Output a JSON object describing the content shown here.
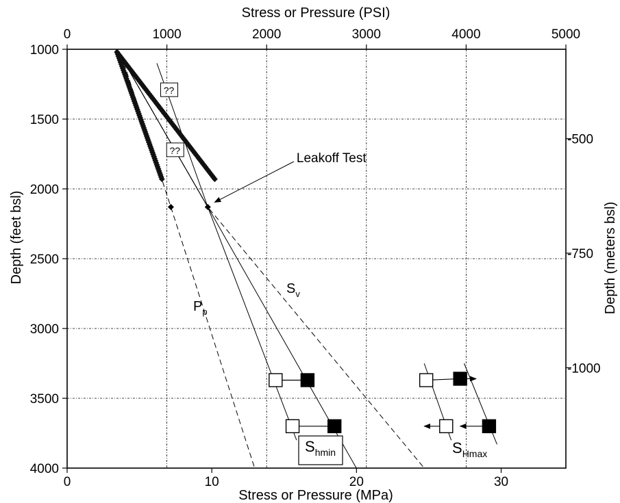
{
  "chart_data": {
    "type": "scatter",
    "title": "",
    "x_top_label": "Stress or Pressure (PSI)",
    "x_bottom_label": "Stress or Pressure (MPa)",
    "y_left_label": "Depth (feet bsl)",
    "y_right_label": "Depth (meters bsl)",
    "x_psi_range": [
      0,
      5000
    ],
    "x_psi_ticks": [
      0,
      1000,
      2000,
      3000,
      4000,
      5000
    ],
    "x_mpa_ticks": [
      0,
      10,
      20,
      30
    ],
    "y_feet_range": [
      1000,
      4000
    ],
    "y_feet_ticks": [
      1000,
      1500,
      2000,
      2500,
      3000,
      3500,
      4000
    ],
    "y_meters_ticks": [
      500,
      750,
      1000
    ],
    "grid": true,
    "annotations": {
      "leakoff_label": "Leakoff Test",
      "question_mark_label": "??",
      "pp_main": "P",
      "pp_sub": "p",
      "sv_main": "S",
      "sv_sub": "v",
      "shmin_main": "S",
      "shmin_sub": "hmin",
      "shmax_main": "S",
      "shmax_sub": "Hmax"
    },
    "question_marks": [
      {
        "psi": 1020,
        "depth": 1290
      },
      {
        "psi": 1080,
        "depth": 1720
      }
    ],
    "leakoff_point": {
      "psi": 1410,
      "depth": 2130
    },
    "leakoff_label_pos": {
      "psi": 2300,
      "depth": 1780
    },
    "pp_point": {
      "psi": 1040,
      "depth": 2130
    },
    "mud_weight_curves": [
      {
        "name": "pore pressure trend",
        "start": {
          "psi": 500,
          "depth": 1020
        },
        "end": {
          "psi": 950,
          "depth": 1930
        }
      },
      {
        "name": "upper trend",
        "start": {
          "psi": 500,
          "depth": 1020
        },
        "end": {
          "psi": 1480,
          "depth": 1930
        }
      }
    ],
    "series": [
      {
        "name": "P_p",
        "style": "dashed",
        "points": [
          {
            "psi": 570,
            "depth": 1100
          },
          {
            "psi": 1040,
            "depth": 2130
          },
          {
            "psi": 1880,
            "depth": 4000
          }
        ]
      },
      {
        "name": "S_v",
        "style": "dashed",
        "points": [
          {
            "psi": 530,
            "depth": 1040
          },
          {
            "psi": 1410,
            "depth": 2130
          },
          {
            "psi": 3580,
            "depth": 4000
          }
        ]
      },
      {
        "name": "S_hmin lower",
        "style": "solid",
        "points": [
          {
            "psi": 530,
            "depth": 1040
          },
          {
            "psi": 1410,
            "depth": 2130
          },
          {
            "psi": 2300,
            "depth": 3800
          }
        ]
      },
      {
        "name": "S_hmin upper",
        "style": "solid",
        "points": [
          {
            "psi": 530,
            "depth": 1040
          },
          {
            "psi": 1410,
            "depth": 2130
          },
          {
            "psi": 2900,
            "depth": 4000
          }
        ]
      },
      {
        "name": "top line",
        "style": "solid",
        "points": [
          {
            "psi": 900,
            "depth": 1100
          },
          {
            "psi": 1410,
            "depth": 2130
          }
        ]
      },
      {
        "name": "S_Hmax lower",
        "style": "solid",
        "points": [
          {
            "psi": 3580,
            "depth": 3250
          },
          {
            "psi": 3850,
            "depth": 3800
          }
        ]
      },
      {
        "name": "S_Hmax upper",
        "style": "solid",
        "points": [
          {
            "psi": 3980,
            "depth": 3250
          },
          {
            "psi": 4310,
            "depth": 3830
          }
        ]
      }
    ],
    "markers": [
      {
        "psi": 2090,
        "depth": 3370,
        "fill": "open"
      },
      {
        "psi": 2410,
        "depth": 3370,
        "fill": "filled"
      },
      {
        "psi": 2260,
        "depth": 3700,
        "fill": "open"
      },
      {
        "psi": 2680,
        "depth": 3700,
        "fill": "filled"
      },
      {
        "psi": 3600,
        "depth": 3370,
        "fill": "open"
      },
      {
        "psi": 3940,
        "depth": 3360,
        "fill": "filled"
      },
      {
        "psi": 3800,
        "depth": 3700,
        "fill": "open"
      },
      {
        "psi": 4230,
        "depth": 3700,
        "fill": "filled"
      }
    ],
    "connectors": [
      {
        "from": {
          "psi": 2090,
          "depth": 3370
        },
        "to": {
          "psi": 2410,
          "depth": 3370
        },
        "arrow": false
      },
      {
        "from": {
          "psi": 2260,
          "depth": 3700
        },
        "to": {
          "psi": 2680,
          "depth": 3700
        },
        "arrow": false
      },
      {
        "from": {
          "psi": 3600,
          "depth": 3370
        },
        "to": {
          "psi": 3940,
          "depth": 3360
        },
        "arrow": "end"
      },
      {
        "from": {
          "psi": 3940,
          "depth": 3360
        },
        "to": {
          "psi": 4100,
          "depth": 3360
        },
        "arrow": "end"
      },
      {
        "from": {
          "psi": 3800,
          "depth": 3700
        },
        "to": {
          "psi": 3580,
          "depth": 3700
        },
        "arrow": "end"
      },
      {
        "from": {
          "psi": 4230,
          "depth": 3700
        },
        "to": {
          "psi": 3940,
          "depth": 3700
        },
        "arrow": "end"
      }
    ]
  }
}
